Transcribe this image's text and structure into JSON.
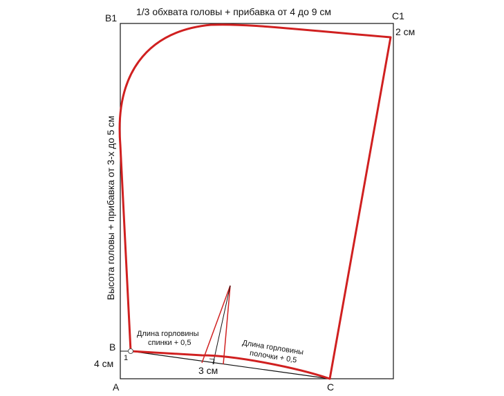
{
  "labels": {
    "top_dimension": "1/3 обхвата головы + прибавка от 4 до 9 см",
    "side_dimension": "Высота головы + прибавка от 3-х до 5 см",
    "point_B1": "В1",
    "point_C1": "С1",
    "point_B": "В",
    "point_A": "А",
    "point_C": "С",
    "point_1": "1",
    "offset_2cm": "2 см",
    "offset_4cm": "4 см",
    "dart_3cm": "3 см",
    "back_neck_line1": "Длина горловины",
    "back_neck_line2": "спинки + 0,5",
    "front_neck_line1": "Длина горловины",
    "front_neck_line2": "полочки + 0,5"
  },
  "colors": {
    "outline": "#111111",
    "pattern": "#d02020"
  }
}
